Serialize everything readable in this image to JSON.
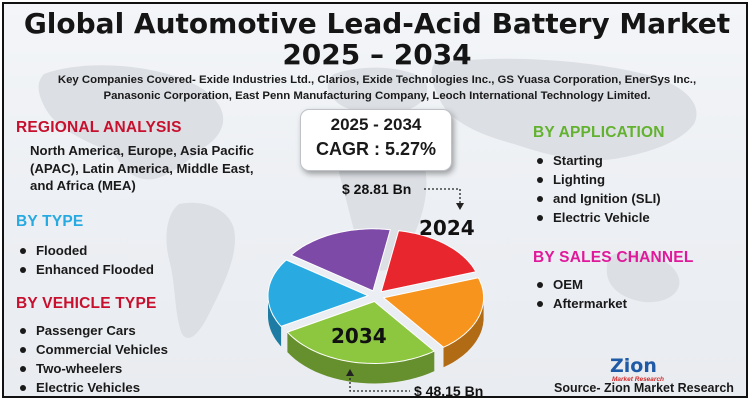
{
  "header": {
    "title_line1": "Global Automotive Lead-Acid Battery Market",
    "title_line2": "2025 – 2034",
    "companies_line1": "Key Companies Covered- Exide Industries Ltd., Clarios, Exide Technologies Inc., GS Yuasa Corporation, EnerSys Inc.,",
    "companies_line2": "Panasonic Corporation, East Penn Manufacturing Company, Leoch International Technology Limited."
  },
  "regional": {
    "heading": "REGIONAL ANALYSIS",
    "text": "North America, Europe, Asia Pacific (APAC), Latin America, Middle East, and Africa (MEA)"
  },
  "by_type": {
    "heading": "BY TYPE",
    "items": [
      "Flooded",
      "Enhanced Flooded"
    ]
  },
  "by_vehicle": {
    "heading": "BY VEHICLE TYPE",
    "items": [
      "Passenger Cars",
      "Commercial Vehicles",
      "Two-wheelers",
      "Electric Vehicles"
    ]
  },
  "by_application": {
    "heading": "BY APPLICATION",
    "items": [
      "Starting",
      "Lighting",
      "and Ignition (SLI)",
      "Electric Vehicle"
    ]
  },
  "by_sales": {
    "heading": "BY SALES CHANNEL",
    "items": [
      "OEM",
      "Aftermarket"
    ]
  },
  "cagr": {
    "years": "2025 - 2034",
    "value": "CAGR : 5.27%"
  },
  "logo": {
    "name": "Zion",
    "tagline": "Market Research"
  },
  "source": "Source- Zion Market Research",
  "colors": {
    "red": "#c8102e",
    "blue": "#27a9e1",
    "green": "#62b22f",
    "pink": "#e0199b",
    "slice_red": "#e8262e",
    "slice_orange": "#f7941d",
    "slice_green": "#8dc63f",
    "slice_blue": "#29abe2",
    "slice_purple": "#7d4aa8"
  },
  "chart_data": {
    "type": "pie",
    "title": "Global Automotive Lead-Acid Battery Market 2025 – 2034",
    "annotations": [
      {
        "year": "2024",
        "value_label": "$ 28.81 Bn",
        "value": 28.81
      },
      {
        "year": "2034",
        "value_label": "$ 48.15 Bn",
        "value": 48.15
      }
    ],
    "cagr": "5.27%",
    "slices": [
      {
        "name": "2024",
        "color": "#e8262e",
        "share": 0.17
      },
      {
        "name": "",
        "color": "#f7941d",
        "share": 0.2
      },
      {
        "name": "2034",
        "color": "#8dc63f",
        "share": 0.27
      },
      {
        "name": "",
        "color": "#29abe2",
        "share": 0.18
      },
      {
        "name": "",
        "color": "#7d4aa8",
        "share": 0.18
      }
    ]
  }
}
